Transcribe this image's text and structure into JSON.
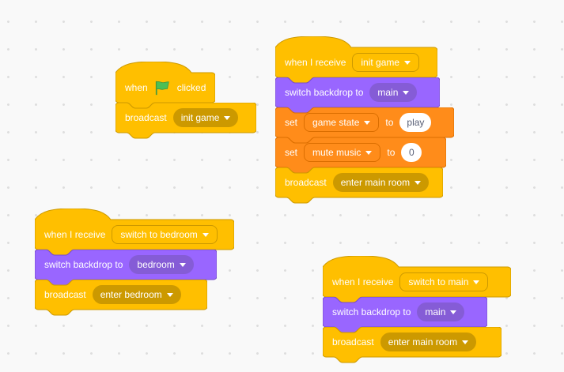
{
  "canvas": {
    "background": "#f9f9f9",
    "dot_color": "#dedede"
  },
  "palette": {
    "events": {
      "fill": "#ffbf00",
      "stroke": "#cc9900",
      "field": "#cc9900"
    },
    "looks": {
      "fill": "#9966ff",
      "stroke": "#774dcb",
      "field": "#855cd6"
    },
    "variables": {
      "fill": "#ff8c1a",
      "stroke": "#db6e00",
      "field": "#ff8c1a"
    },
    "label_text": "#ffffff",
    "input_text": "#575e75",
    "flag_green": "#4cbf56",
    "flag_outline": "#45993d"
  },
  "stacks": [
    {
      "blocks": [
        {
          "label_when": "when",
          "label_clicked": "clicked"
        },
        {
          "label": "broadcast",
          "message": "init game"
        }
      ]
    },
    {
      "blocks": [
        {
          "label": "when I receive",
          "message": "init game"
        },
        {
          "label": "switch backdrop to",
          "backdrop": "main"
        },
        {
          "label_set": "set",
          "variable": "game state",
          "label_to": "to",
          "value": "play"
        },
        {
          "label_set": "set",
          "variable": "mute music",
          "label_to": "to",
          "value": "0"
        },
        {
          "label": "broadcast",
          "message": "enter main room"
        }
      ]
    },
    {
      "blocks": [
        {
          "label": "when I receive",
          "message": "switch to bedroom"
        },
        {
          "label": "switch backdrop to",
          "backdrop": "bedroom"
        },
        {
          "label": "broadcast",
          "message": "enter bedroom"
        }
      ]
    },
    {
      "blocks": [
        {
          "label": "when I receive",
          "message": "switch to main"
        },
        {
          "label": "switch backdrop to",
          "backdrop": "main"
        },
        {
          "label": "broadcast",
          "message": "enter main room"
        }
      ]
    }
  ]
}
